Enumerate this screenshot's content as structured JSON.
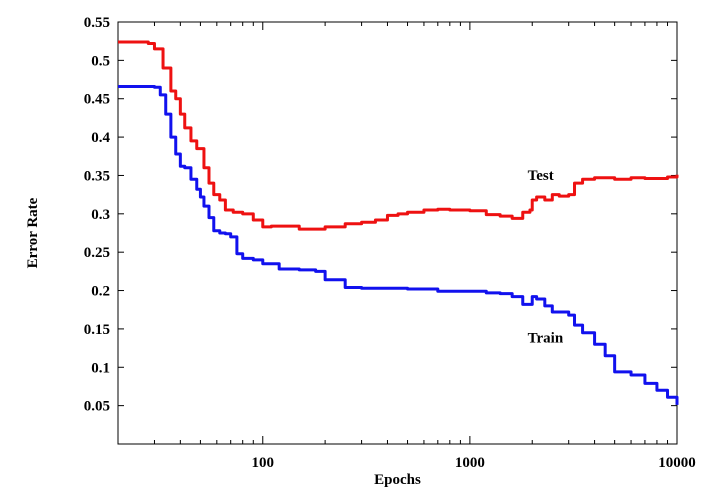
{
  "chart_data": {
    "type": "line",
    "title": "",
    "xlabel": "Epochs",
    "ylabel": "Error Rate",
    "xscale": "log",
    "xlim": [
      20,
      10000
    ],
    "ylim": [
      0,
      0.55
    ],
    "grid": false,
    "xticks": [
      {
        "value": 100,
        "label": "100"
      },
      {
        "value": 1000,
        "label": "1000"
      },
      {
        "value": 10000,
        "label": "10000"
      }
    ],
    "yticks": [
      {
        "value": 0.05,
        "label": "0.05"
      },
      {
        "value": 0.1,
        "label": "0.1"
      },
      {
        "value": 0.15,
        "label": "0.15"
      },
      {
        "value": 0.2,
        "label": "0.2"
      },
      {
        "value": 0.25,
        "label": "0.25"
      },
      {
        "value": 0.3,
        "label": "0.3"
      },
      {
        "value": 0.35,
        "label": "0.35"
      },
      {
        "value": 0.4,
        "label": "0.4"
      },
      {
        "value": 0.45,
        "label": "0.45"
      },
      {
        "value": 0.5,
        "label": "0.5"
      },
      {
        "value": 0.55,
        "label": "0.55"
      }
    ],
    "series": [
      {
        "name": "Test",
        "color": "#ee1111",
        "label_at": [
          1900,
          0.344
        ],
        "x": [
          20,
          28,
          30,
          33,
          36,
          38,
          40,
          42,
          45,
          48,
          52,
          55,
          58,
          62,
          66,
          72,
          80,
          90,
          100,
          110,
          120,
          150,
          200,
          250,
          300,
          350,
          400,
          450,
          500,
          600,
          700,
          800,
          1000,
          1200,
          1400,
          1600,
          1800,
          1950,
          2000,
          2100,
          2300,
          2500,
          2700,
          3000,
          3200,
          3500,
          4000,
          5000,
          6000,
          7000,
          8000,
          9000,
          10000
        ],
        "y": [
          0.524,
          0.522,
          0.515,
          0.49,
          0.46,
          0.45,
          0.43,
          0.412,
          0.395,
          0.385,
          0.36,
          0.34,
          0.325,
          0.318,
          0.305,
          0.302,
          0.3,
          0.292,
          0.283,
          0.284,
          0.284,
          0.28,
          0.283,
          0.287,
          0.289,
          0.292,
          0.298,
          0.3,
          0.302,
          0.305,
          0.306,
          0.305,
          0.304,
          0.299,
          0.297,
          0.294,
          0.302,
          0.305,
          0.318,
          0.322,
          0.318,
          0.325,
          0.323,
          0.325,
          0.34,
          0.345,
          0.347,
          0.345,
          0.347,
          0.346,
          0.346,
          0.348,
          0.351
        ]
      },
      {
        "name": "Train",
        "color": "#1111ee",
        "label_at": [
          1900,
          0.132
        ],
        "x": [
          20,
          28,
          30,
          32,
          34,
          36,
          38,
          40,
          42,
          45,
          48,
          50,
          52,
          55,
          58,
          62,
          66,
          70,
          75,
          80,
          90,
          100,
          120,
          150,
          180,
          200,
          250,
          300,
          400,
          500,
          700,
          800,
          1000,
          1200,
          1400,
          1600,
          1800,
          2000,
          2100,
          2300,
          2500,
          3000,
          3200,
          3500,
          4000,
          4500,
          5000,
          6000,
          7000,
          8000,
          9000,
          10000
        ],
        "y": [
          0.466,
          0.466,
          0.465,
          0.455,
          0.43,
          0.4,
          0.378,
          0.362,
          0.36,
          0.345,
          0.332,
          0.322,
          0.31,
          0.295,
          0.278,
          0.275,
          0.274,
          0.27,
          0.248,
          0.242,
          0.24,
          0.235,
          0.228,
          0.227,
          0.225,
          0.214,
          0.204,
          0.203,
          0.203,
          0.202,
          0.199,
          0.199,
          0.199,
          0.197,
          0.196,
          0.192,
          0.182,
          0.192,
          0.189,
          0.18,
          0.172,
          0.168,
          0.155,
          0.145,
          0.13,
          0.115,
          0.094,
          0.09,
          0.079,
          0.07,
          0.061,
          0.051
        ]
      }
    ]
  }
}
